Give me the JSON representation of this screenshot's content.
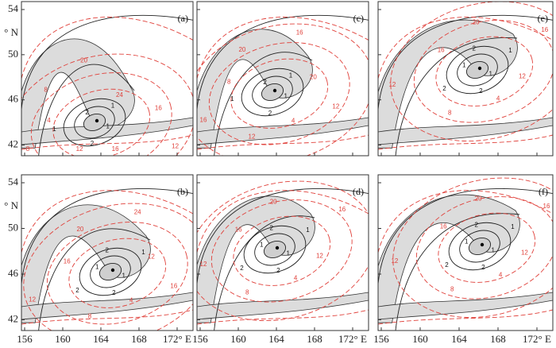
{
  "y_axis": {
    "unit": "° N",
    "ticks": [
      "54",
      "50",
      "46",
      "42"
    ]
  },
  "x_axis": {
    "ticks": [
      "156",
      "160",
      "164",
      "168",
      "172° E"
    ]
  },
  "panels": [
    {
      "label": "(a)",
      "solid_labels": [
        "1",
        "2",
        "1",
        "2",
        "1"
      ],
      "dashed_labels": [
        "16",
        "12",
        "8",
        "4",
        "8",
        "20",
        "24",
        "16",
        "12"
      ]
    },
    {
      "label": "(c)",
      "solid_labels": [
        "1",
        "2",
        "1",
        "2",
        "1"
      ],
      "dashed_labels": [
        "4",
        "12",
        "16",
        "8",
        "20",
        "16",
        "20",
        "12"
      ]
    },
    {
      "label": "(e)",
      "solid_labels": [
        "1",
        "2",
        "2",
        "1",
        "2",
        "1"
      ],
      "dashed_labels": [
        "4",
        "8",
        "12",
        "16",
        "20",
        "16",
        "12"
      ]
    },
    {
      "label": "(b)",
      "solid_labels": [
        "1",
        "2",
        "2",
        "1",
        "2",
        "1"
      ],
      "dashed_labels": [
        "4",
        "8",
        "12",
        "16",
        "20",
        "24",
        "12",
        "16"
      ]
    },
    {
      "label": "(d)",
      "solid_labels": [
        "1",
        "2",
        "2",
        "1",
        "2",
        "1"
      ],
      "dashed_labels": [
        "4",
        "8",
        "12",
        "16",
        "20",
        "16",
        "12"
      ]
    },
    {
      "label": "(f)",
      "solid_labels": [
        "1",
        "2",
        "2",
        "1",
        "2",
        "1"
      ],
      "dashed_labels": [
        "4",
        "8",
        "12",
        "16",
        "20",
        "16",
        "12"
      ]
    }
  ]
}
